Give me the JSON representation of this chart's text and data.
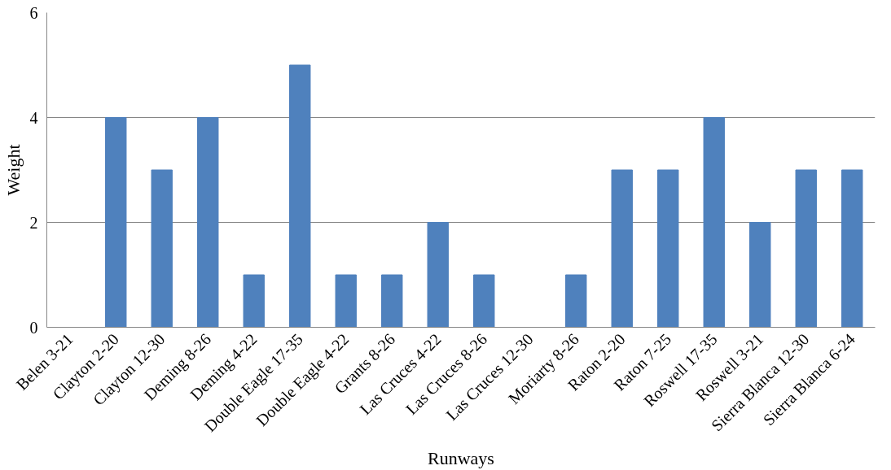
{
  "chart_data": {
    "type": "bar",
    "xlabel": "Runways",
    "ylabel": "Weight",
    "categories": [
      "Belen 3-21",
      "Clayton 2-20",
      "Clayton 12-30",
      "Deming 8-26",
      "Deming 4-22",
      "Double Eagle 17-35",
      "Double Eagle 4-22",
      "Grants 8-26",
      "Las Cruces 4-22",
      "Las Cruces 8-26",
      "Las Cruces 12-30",
      "Moriarty 8-26",
      "Raton 2-20",
      "Raton 7-25",
      "Roswell 17-35",
      "Roswell 3-21",
      "Sierra Blanca 12-30",
      "Sierra Blanca 6-24"
    ],
    "values": [
      0,
      4,
      3,
      4,
      1,
      5,
      1,
      1,
      2,
      1,
      0,
      1,
      3,
      3,
      4,
      2,
      3,
      3
    ],
    "color": "#4f81bd",
    "ylim": [
      0,
      6
    ],
    "yticks": [
      0,
      2,
      4,
      6
    ],
    "grid": "y"
  }
}
